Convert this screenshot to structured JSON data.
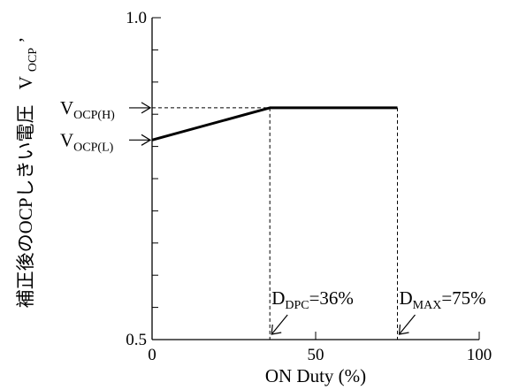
{
  "chart_data": {
    "type": "line",
    "xlabel": "ON Duty (%)",
    "ylabel_main": "補正後のOCPしきい電圧",
    "ylabel_symbol": "V",
    "ylabel_symbol_sub": "OCP",
    "ylabel_symbol_tail": "’",
    "xlim": [
      0,
      100
    ],
    "ylim": [
      0.5,
      1.0
    ],
    "x_ticks": [
      {
        "value": 0,
        "label": "0"
      },
      {
        "value": 50,
        "label": "50"
      },
      {
        "value": 100,
        "label": "100"
      }
    ],
    "y_ticks": [
      {
        "value": 0.5,
        "label": "0.5"
      },
      {
        "value": 1.0,
        "label": "1.0"
      }
    ],
    "y_minor_ticks": [
      0.55,
      0.6,
      0.65,
      0.7,
      0.75,
      0.8,
      0.85,
      0.9,
      0.95
    ],
    "series": [
      {
        "x": [
          0,
          36,
          75
        ],
        "y": [
          0.81,
          0.86,
          0.86
        ]
      }
    ],
    "y_markers": [
      {
        "main": "V",
        "sub": "OCP(L)",
        "value": 0.81
      },
      {
        "main": "V",
        "sub": "OCP(H)",
        "value": 0.86
      }
    ],
    "x_markers": [
      {
        "main": "D",
        "sub": "DPC",
        "suffix": "=36%",
        "value": 36
      },
      {
        "main": "D",
        "sub": "MAX",
        "suffix": "=75%",
        "value": 75
      }
    ]
  }
}
